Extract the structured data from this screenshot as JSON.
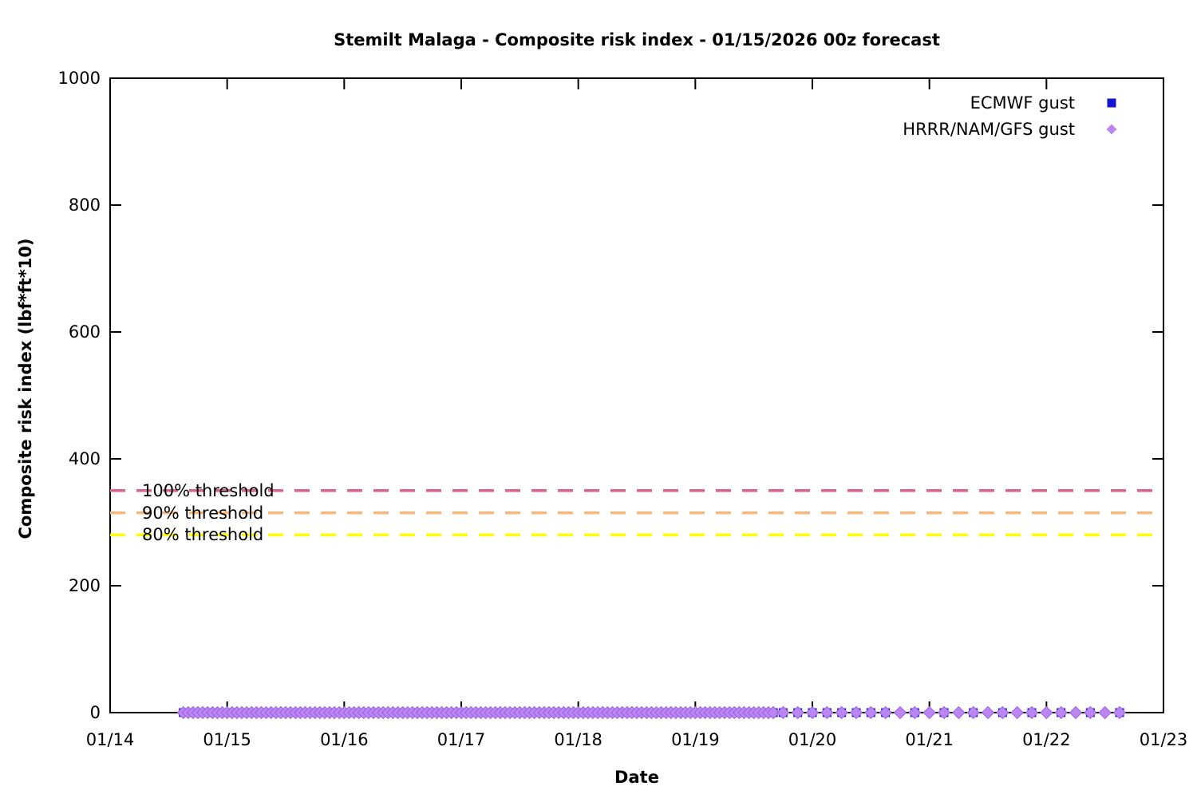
{
  "title": "Stemilt Malaga - Composite risk index - 01/15/2026 00z forecast",
  "chart_data": {
    "type": "scatter",
    "title": "Stemilt Malaga - Composite risk index - 01/15/2026 00z forecast",
    "xlabel": "Date",
    "ylabel": "Composite risk index (lbf*ft*10)",
    "ylim": [
      0,
      1000
    ],
    "yticks": [
      "0",
      "200",
      "400",
      "600",
      "800",
      "1000"
    ],
    "xticks": [
      "01/14",
      "01/15",
      "01/16",
      "01/17",
      "01/18",
      "01/19",
      "01/20",
      "01/21",
      "01/22",
      "01/23"
    ],
    "x_span_days": 9,
    "grid": false,
    "legend_position": "top-right-inside",
    "series": [
      {
        "name": "ECMWF gust",
        "marker": "square",
        "color": "#1515cd",
        "y_value": 0,
        "segments": [
          {
            "start_day": 0.625,
            "end_day": 5.667,
            "interval_hours": 1
          },
          {
            "start_day": 5.75,
            "end_day": 6.625,
            "interval_hours": 3
          },
          {
            "start_day": 6.875,
            "end_day": 8.625,
            "interval_hours": 6
          }
        ]
      },
      {
        "name": "HRRR/NAM/GFS gust",
        "marker": "diamond",
        "color": "#bb86f2",
        "edge_color": "#9b63e3",
        "y_value": 0,
        "segments": [
          {
            "start_day": 0.625,
            "end_day": 5.667,
            "interval_hours": 1
          },
          {
            "start_day": 5.75,
            "end_day": 8.625,
            "interval_hours": 3
          }
        ]
      }
    ],
    "thresholds": [
      {
        "label": "100% threshold",
        "value": 350,
        "color": "#dd6288"
      },
      {
        "label": "90% threshold",
        "value": 315,
        "color": "#f9b87a"
      },
      {
        "label": "80% threshold",
        "value": 280,
        "color": "#ffff00"
      }
    ]
  }
}
